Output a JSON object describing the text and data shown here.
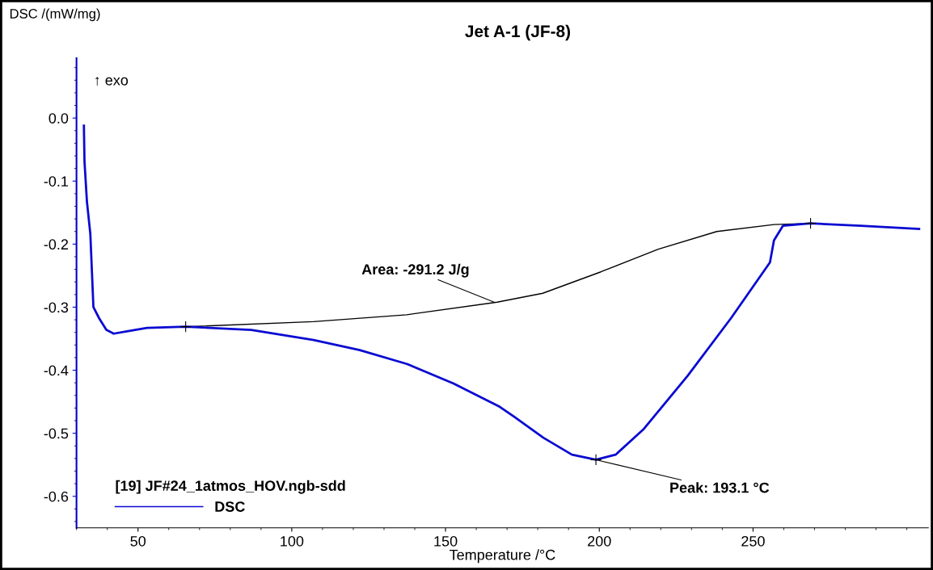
{
  "chart_data": {
    "type": "line",
    "title": "Jet A-1 (JF-8)",
    "xlabel": "Temperature /°C",
    "ylabel": "DSC /(mW/mg)",
    "legend_title": "[19] JF#24_1atmos_HOV.ngb-sdd",
    "legend": "bottom left",
    "grid": false,
    "marker": "none",
    "line_style": "solid",
    "xlim": [
      30,
      307
    ],
    "ylim": [
      -0.65,
      0.095
    ],
    "xticks": [
      50,
      100,
      150,
      200,
      250
    ],
    "yticks": [
      {
        "value": 0,
        "label": "0.0"
      },
      -0.1,
      -0.2,
      -0.3,
      -0.4,
      -0.5,
      -0.6
    ],
    "series": [
      {
        "name": "DSC",
        "color": "#0a0ad2",
        "x": [
          32.4,
          32.6,
          33.4,
          34.5,
          35.5,
          37.4,
          39.7,
          42.1,
          46.8,
          52.9,
          65.5,
          86.8,
          107.1,
          122.1,
          137.4,
          152.6,
          167.6,
          172.4,
          181.8,
          191.1,
          198.9,
          205.3,
          214.5,
          228.7,
          242.9,
          255.5,
          256.8,
          259.7,
          268.7,
          285,
          304
        ],
        "values": [
          -0.012,
          -0.069,
          -0.133,
          -0.184,
          -0.3,
          -0.318,
          -0.336,
          -0.342,
          -0.338,
          -0.333,
          -0.331,
          -0.336,
          -0.352,
          -0.368,
          -0.39,
          -0.421,
          -0.458,
          -0.474,
          -0.507,
          -0.534,
          -0.542,
          -0.534,
          -0.493,
          -0.409,
          -0.317,
          -0.229,
          -0.194,
          -0.171,
          -0.167,
          -0.171,
          -0.176
        ]
      },
      {
        "color": "#000000",
        "x": [
          65.5,
          107.1,
          137.4,
          166.8,
          181.6,
          200.5,
          219.2,
          238.2,
          256.8,
          268.7
        ],
        "values": [
          -0.331,
          -0.323,
          -0.312,
          -0.292,
          -0.278,
          -0.244,
          -0.208,
          -0.18,
          -0.169,
          -0.167
        ]
      },
      {
        "type": "scatter",
        "marker": "cross",
        "color": "#000000",
        "x": [
          65.5,
          268.7,
          198.9
        ],
        "values": [
          -0.331,
          -0.167,
          -0.542
        ]
      }
    ],
    "annotations": [
      "↑ exo",
      {
        "text": "Area: -291.2 J/g",
        "x": 165.8,
        "y": -0.292
      },
      {
        "text": "Peak: 193.1 °C",
        "x": 198.9,
        "y": -0.542
      }
    ]
  }
}
